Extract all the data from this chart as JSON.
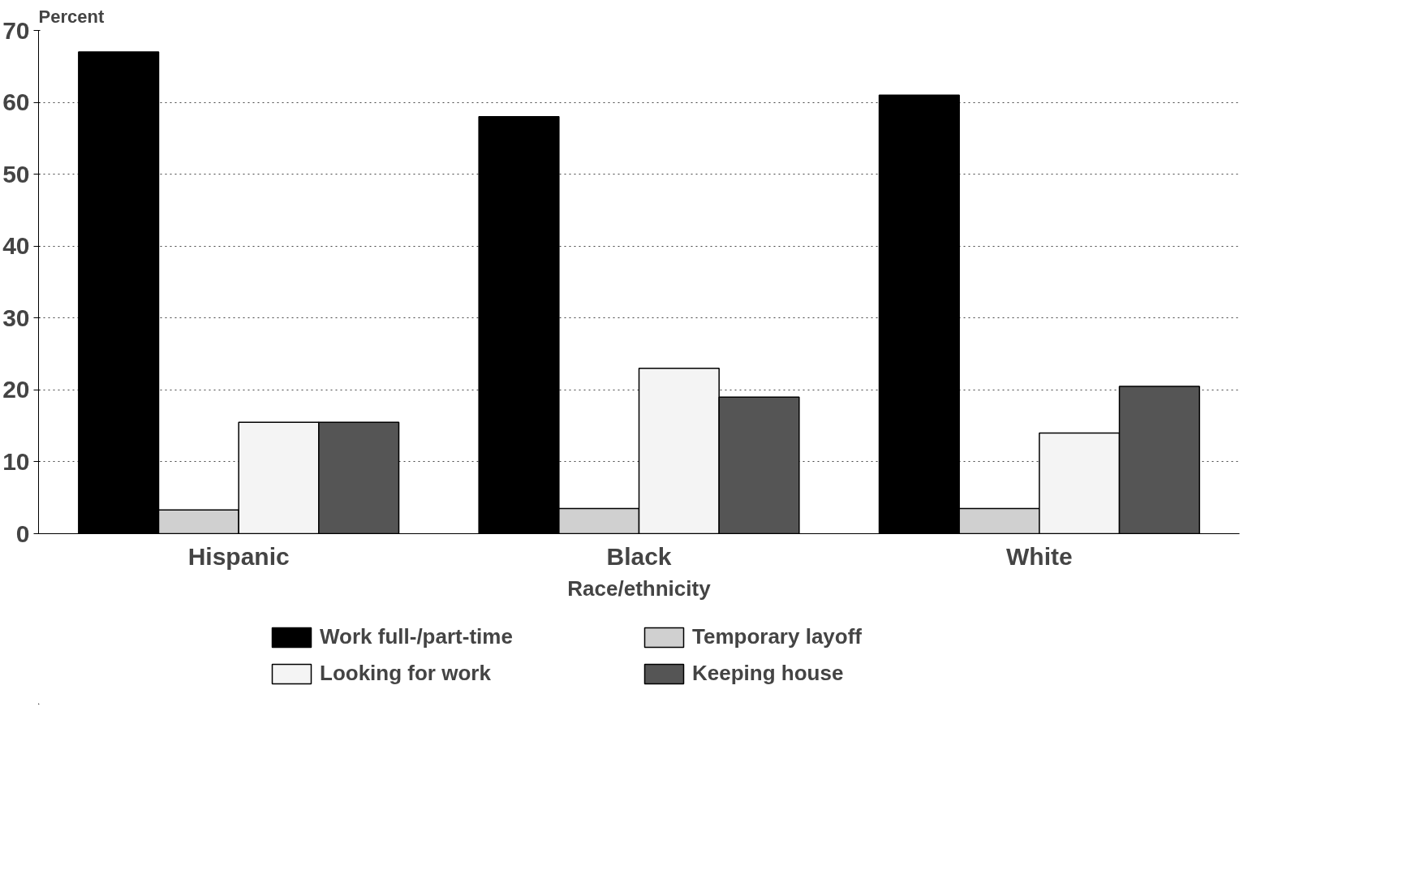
{
  "chart_data": {
    "type": "bar",
    "xlabel": "Race/ethnicity",
    "ylabel": "Percent",
    "categories": [
      "Hispanic",
      "Black",
      "White"
    ],
    "series": [
      {
        "name": "Work full-/part-time",
        "color": "#000000",
        "values": [
          67,
          58,
          61
        ]
      },
      {
        "name": "Temporary layoff",
        "color": "#d0d0d0",
        "values": [
          3.3,
          3.5,
          3.5
        ]
      },
      {
        "name": "Looking for work",
        "color": "#f4f4f4",
        "values": [
          15.5,
          23,
          14
        ]
      },
      {
        "name": "Keeping house",
        "color": "#555555",
        "values": [
          15.5,
          19,
          20.5
        ]
      }
    ],
    "ylim": [
      0,
      70
    ],
    "yticks": [
      0,
      10,
      20,
      30,
      40,
      50,
      60,
      70
    ],
    "grid": "y",
    "legend": "bottom"
  }
}
